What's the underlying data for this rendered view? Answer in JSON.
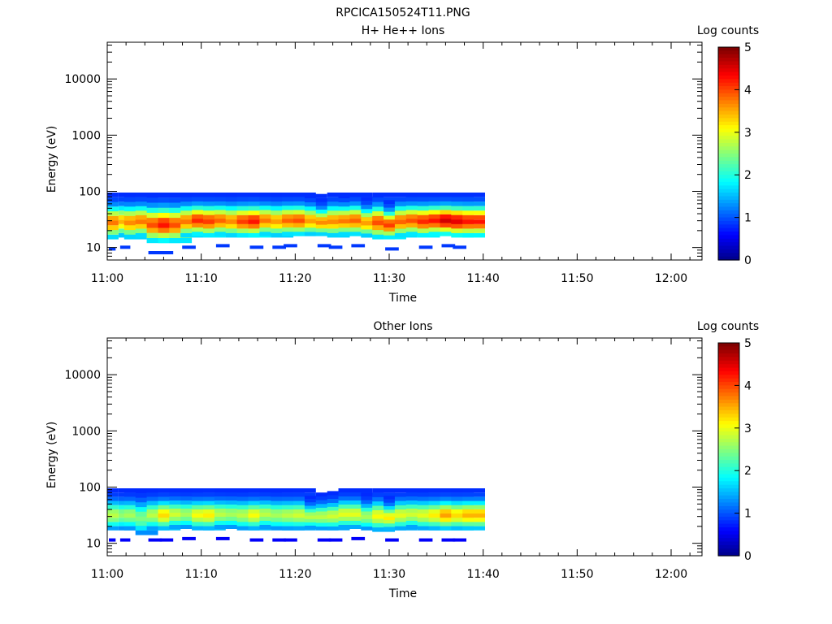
{
  "figure": {
    "title": "RPCICA150524T11.PNG"
  },
  "chart_data": [
    {
      "type": "heatmap",
      "title": "H+ He++ Ions",
      "xlabel": "Time",
      "ylabel": "Energy (eV)",
      "x_ticks": [
        "11:00",
        "11:10",
        "11:20",
        "11:30",
        "11:40",
        "11:50",
        "12:00"
      ],
      "y_ticks": [
        "10",
        "100",
        "1000",
        "10000"
      ],
      "y_scale": "log",
      "ylim": [
        6,
        45000
      ],
      "colorbar": {
        "label": "Log counts",
        "ticks": [
          "0",
          "1",
          "2",
          "3",
          "4",
          "5"
        ],
        "range": [
          0,
          5
        ]
      },
      "columns": [
        {
          "t": [
            11.0,
            11.0
          ],
          "peak": 3.8,
          "lo": 14,
          "hi": 95
        },
        {
          "t": [
            11.02,
            11.03
          ],
          "peak": 3.5,
          "lo": 15,
          "hi": 95
        },
        {
          "t": [
            11.03,
            11.05
          ],
          "peak": 3.7,
          "lo": 14,
          "hi": 95
        },
        {
          "t": [
            11.05,
            11.07
          ],
          "peak": 3.8,
          "lo": 15,
          "hi": 95
        },
        {
          "t": [
            11.07,
            11.09
          ],
          "peak": 4.0,
          "lo": 12,
          "hi": 95
        },
        {
          "t": [
            11.09,
            11.11
          ],
          "peak": 4.3,
          "lo": 12,
          "hi": 95
        },
        {
          "t": [
            11.11,
            11.13
          ],
          "peak": 4.0,
          "lo": 12,
          "hi": 95
        },
        {
          "t": [
            11.13,
            11.15
          ],
          "peak": 3.8,
          "lo": 15,
          "hi": 95
        },
        {
          "t": [
            11.15,
            11.17
          ],
          "peak": 4.2,
          "lo": 16,
          "hi": 95
        },
        {
          "t": [
            11.17,
            11.19
          ],
          "peak": 4.1,
          "lo": 15,
          "hi": 95
        },
        {
          "t": [
            11.19,
            11.21
          ],
          "peak": 3.9,
          "lo": 16,
          "hi": 95
        },
        {
          "t": [
            11.21,
            11.23
          ],
          "peak": 3.7,
          "lo": 15,
          "hi": 95
        },
        {
          "t": [
            11.23,
            11.25
          ],
          "peak": 4.1,
          "lo": 15,
          "hi": 95
        },
        {
          "t": [
            11.25,
            11.27
          ],
          "peak": 4.3,
          "lo": 15,
          "hi": 95
        },
        {
          "t": [
            11.27,
            11.29
          ],
          "peak": 3.8,
          "lo": 16,
          "hi": 95
        },
        {
          "t": [
            11.29,
            11.31
          ],
          "peak": 3.6,
          "lo": 15,
          "hi": 95
        },
        {
          "t": [
            11.31,
            11.33
          ],
          "peak": 3.9,
          "lo": 16,
          "hi": 95
        },
        {
          "t": [
            11.33,
            11.35
          ],
          "peak": 4.0,
          "lo": 16,
          "hi": 95
        },
        {
          "t": [
            11.35,
            11.37
          ],
          "peak": 3.6,
          "lo": 16,
          "hi": 90
        },
        {
          "t": [
            11.37,
            11.39
          ],
          "peak": 3.7,
          "lo": 16,
          "hi": 75
        },
        {
          "t": [
            11.39,
            11.41
          ],
          "peak": 3.7,
          "lo": 15,
          "hi": 95
        },
        {
          "t": [
            11.41,
            11.43
          ],
          "peak": 3.8,
          "lo": 16,
          "hi": 90
        },
        {
          "t": [
            11.43,
            11.45
          ],
          "peak": 3.9,
          "lo": 16,
          "hi": 95
        },
        {
          "t": [
            11.45,
            11.47
          ],
          "peak": 3.6,
          "lo": 15,
          "hi": 80
        },
        {
          "t": [
            11.47,
            11.49
          ],
          "peak": 4.0,
          "lo": 14,
          "hi": 95
        },
        {
          "t": [
            11.49,
            11.51
          ],
          "peak": 4.1,
          "lo": 14,
          "hi": 70
        },
        {
          "t": [
            11.51,
            11.53
          ],
          "peak": 3.9,
          "lo": 15,
          "hi": 95
        },
        {
          "t": [
            11.53,
            11.55
          ],
          "peak": 4.0,
          "lo": 16,
          "hi": 95
        },
        {
          "t": [
            11.55,
            11.57
          ],
          "peak": 4.2,
          "lo": 15,
          "hi": 95
        },
        {
          "t": [
            11.57,
            11.59
          ],
          "peak": 4.3,
          "lo": 16,
          "hi": 95
        },
        {
          "t": [
            11.59,
            11.61
          ],
          "peak": 4.6,
          "lo": 16,
          "hi": 95
        },
        {
          "t": [
            11.61,
            11.63
          ],
          "peak": 4.5,
          "lo": 15,
          "hi": 95
        },
        {
          "t": [
            11.63,
            11.65
          ],
          "peak": 4.3,
          "lo": 15,
          "hi": 95
        }
      ]
    },
    {
      "type": "heatmap",
      "title": "Other Ions",
      "xlabel": "Time",
      "ylabel": "Energy (eV)",
      "x_ticks": [
        "11:00",
        "11:10",
        "11:20",
        "11:30",
        "11:40",
        "11:50",
        "12:00"
      ],
      "y_ticks": [
        "10",
        "100",
        "1000",
        "10000"
      ],
      "y_scale": "log",
      "ylim": [
        6,
        45000
      ],
      "colorbar": {
        "label": "Log counts",
        "ticks": [
          "0",
          "1",
          "2",
          "3",
          "4",
          "5"
        ],
        "range": [
          0,
          5
        ]
      },
      "columns": [
        {
          "t": [
            11.0,
            11.0
          ],
          "peak": 2.8,
          "lo": 17,
          "hi": 95
        },
        {
          "t": [
            11.02,
            11.03
          ],
          "peak": 2.6,
          "lo": 17,
          "hi": 95
        },
        {
          "t": [
            11.03,
            11.05
          ],
          "peak": 2.7,
          "lo": 17,
          "hi": 95
        },
        {
          "t": [
            11.05,
            11.07
          ],
          "peak": 2.5,
          "lo": 14,
          "hi": 95
        },
        {
          "t": [
            11.07,
            11.09
          ],
          "peak": 2.8,
          "lo": 17,
          "hi": 95
        },
        {
          "t": [
            11.09,
            11.11
          ],
          "peak": 3.3,
          "lo": 17,
          "hi": 95
        },
        {
          "t": [
            11.11,
            11.13
          ],
          "peak": 2.9,
          "lo": 18,
          "hi": 95
        },
        {
          "t": [
            11.13,
            11.15
          ],
          "peak": 2.7,
          "lo": 18,
          "hi": 95
        },
        {
          "t": [
            11.15,
            11.17
          ],
          "peak": 3.1,
          "lo": 17,
          "hi": 95
        },
        {
          "t": [
            11.17,
            11.19
          ],
          "peak": 3.2,
          "lo": 17,
          "hi": 95
        },
        {
          "t": [
            11.19,
            11.21
          ],
          "peak": 2.8,
          "lo": 18,
          "hi": 95
        },
        {
          "t": [
            11.21,
            11.23
          ],
          "peak": 2.7,
          "lo": 18,
          "hi": 95
        },
        {
          "t": [
            11.23,
            11.25
          ],
          "peak": 2.8,
          "lo": 17,
          "hi": 95
        },
        {
          "t": [
            11.25,
            11.27
          ],
          "peak": 3.1,
          "lo": 17,
          "hi": 95
        },
        {
          "t": [
            11.27,
            11.29
          ],
          "peak": 2.8,
          "lo": 18,
          "hi": 95
        },
        {
          "t": [
            11.29,
            11.31
          ],
          "peak": 2.7,
          "lo": 17,
          "hi": 95
        },
        {
          "t": [
            11.31,
            11.33
          ],
          "peak": 2.8,
          "lo": 17,
          "hi": 95
        },
        {
          "t": [
            11.33,
            11.35
          ],
          "peak": 2.9,
          "lo": 17,
          "hi": 95
        },
        {
          "t": [
            11.35,
            11.37
          ],
          "peak": 2.8,
          "lo": 18,
          "hi": 70
        },
        {
          "t": [
            11.37,
            11.39
          ],
          "peak": 2.8,
          "lo": 17,
          "hi": 80
        },
        {
          "t": [
            11.39,
            11.41
          ],
          "peak": 2.9,
          "lo": 17,
          "hi": 85
        },
        {
          "t": [
            11.41,
            11.43
          ],
          "peak": 3.0,
          "lo": 18,
          "hi": 95
        },
        {
          "t": [
            11.43,
            11.45
          ],
          "peak": 3.0,
          "lo": 18,
          "hi": 95
        },
        {
          "t": [
            11.45,
            11.47
          ],
          "peak": 2.7,
          "lo": 17,
          "hi": 80
        },
        {
          "t": [
            11.47,
            11.49
          ],
          "peak": 3.1,
          "lo": 16,
          "hi": 95
        },
        {
          "t": [
            11.49,
            11.51
          ],
          "peak": 3.2,
          "lo": 17,
          "hi": 70
        },
        {
          "t": [
            11.51,
            11.53
          ],
          "peak": 3.0,
          "lo": 17,
          "hi": 95
        },
        {
          "t": [
            11.53,
            11.55
          ],
          "peak": 2.9,
          "lo": 18,
          "hi": 95
        },
        {
          "t": [
            11.55,
            11.57
          ],
          "peak": 3.0,
          "lo": 17,
          "hi": 95
        },
        {
          "t": [
            11.57,
            11.59
          ],
          "peak": 3.2,
          "lo": 17,
          "hi": 95
        },
        {
          "t": [
            11.59,
            11.61
          ],
          "peak": 3.6,
          "lo": 17,
          "hi": 95
        },
        {
          "t": [
            11.61,
            11.63
          ],
          "peak": 3.3,
          "lo": 17,
          "hi": 95
        },
        {
          "t": [
            11.63,
            11.65
          ],
          "peak": 3.5,
          "lo": 17,
          "hi": 95
        }
      ]
    }
  ]
}
